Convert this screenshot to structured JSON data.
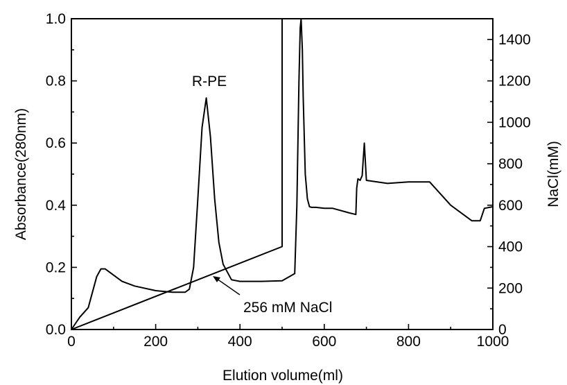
{
  "chart_data": {
    "type": "line",
    "xlabel": "Elution volume(ml)",
    "ylabel": "Absorbance(280nm)",
    "y2label": "NaCl(mM)",
    "xlim": [
      0,
      1000
    ],
    "ylim": [
      0,
      1.0
    ],
    "y2lim": [
      0,
      1500
    ],
    "xticks": [
      "0",
      "200",
      "400",
      "600",
      "800",
      "1000"
    ],
    "yticks": [
      "0.0",
      "0.2",
      "0.4",
      "0.6",
      "0.8",
      "1.0"
    ],
    "y2ticks": [
      "0",
      "200",
      "400",
      "600",
      "800",
      "1000",
      "1200",
      "1400"
    ],
    "grid": false,
    "annotations": [
      {
        "text": "R-PE",
        "x": 320,
        "y": 0.75
      },
      {
        "text": "256 mM NaCl",
        "x": 340,
        "y": 256,
        "arrow": true
      }
    ],
    "series": [
      {
        "axis": "left",
        "x": [
          0,
          10,
          20,
          40,
          50,
          60,
          70,
          80,
          90,
          100,
          120,
          150,
          200,
          240,
          270,
          280,
          290,
          300,
          310,
          320,
          330,
          340,
          350,
          360,
          380,
          400,
          450,
          500,
          530,
          535,
          540,
          543,
          545,
          548,
          550,
          555,
          560,
          565,
          570,
          580,
          600,
          620,
          660,
          675,
          677,
          680,
          685,
          690,
          695,
          700,
          750,
          800,
          850,
          900,
          940,
          950,
          970,
          980,
          1000
        ],
        "y": [
          0.0,
          0.02,
          0.04,
          0.07,
          0.12,
          0.17,
          0.195,
          0.195,
          0.185,
          0.175,
          0.155,
          0.14,
          0.125,
          0.12,
          0.12,
          0.13,
          0.2,
          0.42,
          0.65,
          0.745,
          0.62,
          0.42,
          0.28,
          0.21,
          0.16,
          0.155,
          0.155,
          0.157,
          0.18,
          0.4,
          0.8,
          0.97,
          1.0,
          0.9,
          0.75,
          0.5,
          0.42,
          0.395,
          0.393,
          0.393,
          0.39,
          0.39,
          0.375,
          0.37,
          0.455,
          0.485,
          0.48,
          0.495,
          0.6,
          0.48,
          0.47,
          0.475,
          0.475,
          0.4,
          0.36,
          0.35,
          0.35,
          0.39,
          0.395
        ]
      },
      {
        "axis": "right",
        "x": [
          0,
          500,
          500,
          1000
        ],
        "y": [
          0,
          400,
          1500,
          1500
        ]
      }
    ]
  }
}
